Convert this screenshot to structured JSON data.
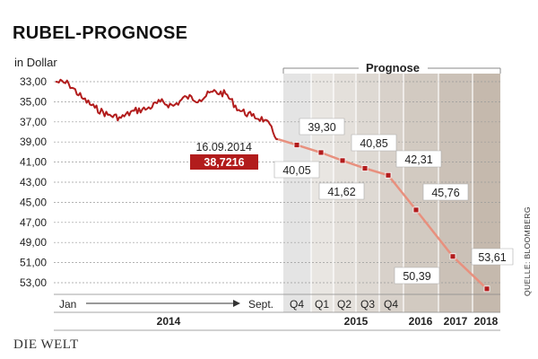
{
  "header": {
    "title": "RUBEL-PROGNOSE",
    "subtitle": "in Dollar"
  },
  "branding": {
    "logo": "DIE WELT",
    "source": "QUELLE: BLOOMBERG"
  },
  "colors": {
    "history_line": "#b21c1c",
    "forecast_line": "#e8907e",
    "forecast_marker": "#b21c1c",
    "highlight_box": "#b21c1c"
  },
  "chart_data": {
    "type": "line",
    "title": "RUBEL-PROGNOSE",
    "ylabel": "in Dollar",
    "y_axis": {
      "reversed": true,
      "ylim": [
        33,
        54
      ],
      "ticks": [
        "33,00",
        "35,00",
        "37,00",
        "39,00",
        "41,00",
        "43,00",
        "45,00",
        "47,00",
        "49,00",
        "51,00",
        "53,00"
      ]
    },
    "grid": true,
    "x_labels_top_row": [
      "Jan",
      "Sept.",
      "Q4",
      "Q1",
      "Q2",
      "Q3",
      "Q4"
    ],
    "x_labels_bottom_row": [
      "2014",
      "2015",
      "2016",
      "2017",
      "2018"
    ],
    "prognose_label": "Prognose",
    "highlight": {
      "date": "16.09.2014",
      "value": 38.7216,
      "label": "38,7216"
    },
    "series": [
      {
        "role": "history",
        "x": [
          "Jan 2014",
          "Jan 2014",
          "Feb 2014",
          "Feb 2014",
          "Mar 2014",
          "Mar 2014",
          "Apr 2014",
          "Apr 2014",
          "May 2014",
          "May 2014",
          "Jun 2014",
          "Jun 2014",
          "Jul 2014",
          "Jul 2014",
          "Aug 2014",
          "Aug 2014",
          "Sep 2014",
          "16.09.2014"
        ],
        "values": [
          33.0,
          33.2,
          34.6,
          35.6,
          36.3,
          36.6,
          35.9,
          35.7,
          35.0,
          35.4,
          34.5,
          34.8,
          34.0,
          34.2,
          35.8,
          36.4,
          36.8,
          38.7216
        ]
      },
      {
        "role": "forecast",
        "categories": [
          "16.09.2014",
          "Q4 2014",
          "Q1 2015",
          "Q2 2015",
          "Q3 2015",
          "Q4 2015",
          "2016",
          "2017",
          "2018"
        ],
        "values": [
          38.7216,
          39.3,
          40.05,
          40.85,
          41.62,
          42.31,
          45.76,
          50.39,
          53.61
        ],
        "labels": [
          "",
          "39,30",
          "40,05",
          "40,85",
          "41,62",
          "42,31",
          "45,76",
          "50,39",
          "53,61"
        ]
      }
    ]
  }
}
